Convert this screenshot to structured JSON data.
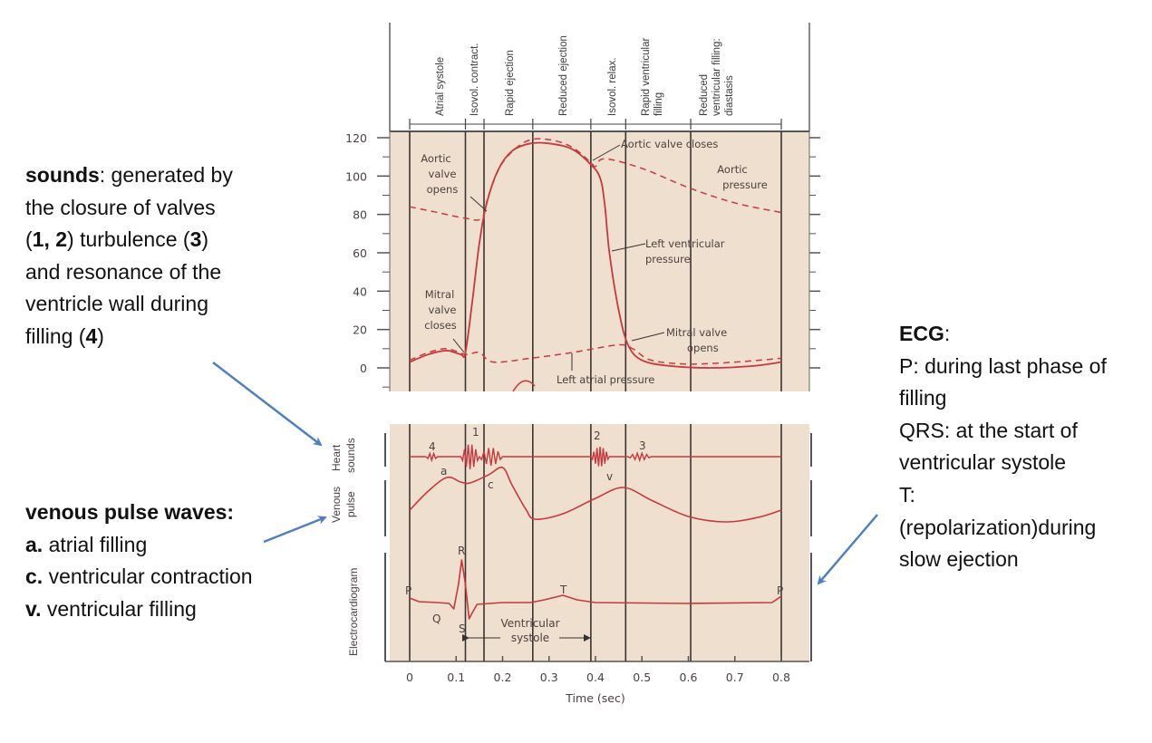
{
  "phases": [
    "Atrial systole",
    "Isovol. contract.",
    "Rapid ejection",
    "Reduced ejection",
    "Isovol. relax.",
    "Rapid ventricular",
    "filling",
    "Reduced",
    "ventricular filling:",
    "diastasis"
  ],
  "pressure_ticks": [
    "120",
    "100",
    "80",
    "60",
    "40",
    "20",
    "0"
  ],
  "time_ticks": [
    "0",
    "0.1",
    "0.2",
    "0.3",
    "0.4",
    "0.5",
    "0.6",
    "0.7",
    "0.8"
  ],
  "time_axis_label": "Time (sec)",
  "annotations": {
    "aortic_valve_opens": [
      "Aortic",
      "valve",
      "opens"
    ],
    "aortic_valve_closes": "Aortic valve closes",
    "aortic_pressure": [
      "Aortic",
      "pressure"
    ],
    "lv_pressure": [
      "Left ventricular",
      "pressure"
    ],
    "mitral_valve_closes": [
      "Mitral",
      "valve",
      "closes"
    ],
    "mitral_valve_opens": [
      "Mitral valve",
      "opens"
    ],
    "left_atrial_pressure": "Left atrial pressure",
    "heart_sound_numbers": [
      "4",
      "1",
      "2",
      "3"
    ],
    "venous_waves": [
      "a",
      "c",
      "v"
    ],
    "ecg_waves": {
      "p1": "P",
      "q": "Q",
      "r": "R",
      "s": "S",
      "t": "T",
      "p2": "P"
    },
    "ventricular_systole": [
      "Ventricular",
      "systole"
    ]
  },
  "row_labels": {
    "heart_sounds": [
      "Heart",
      "sounds"
    ],
    "venous_pulse": [
      "Venous",
      "pulse"
    ],
    "ecg": "Electrocardiogram"
  },
  "notes": {
    "sounds": {
      "l1_bold": "sounds",
      "l1": ": generated by",
      "l2": "the closure of valves",
      "l3_a": "(",
      "l3_b1": "1, 2",
      "l3_c": ") turbulence (",
      "l3_b2": "3",
      "l3_d": ")",
      "l4": "and resonance of the",
      "l5": "ventricle wall during",
      "l6_a": "filling (",
      "l6_b": "4",
      "l6_c": ")"
    },
    "venous": {
      "title": "venous pulse waves:",
      "a_key": "a.",
      "a_text": " atrial filling",
      "c_key": "c.",
      "c_text": " ventricular contraction",
      "v_key": "v.",
      "v_text": " ventricular filling"
    },
    "ecg": {
      "title": "ECG",
      "colon": ":",
      "lines": [
        "P: during last phase of",
        "filling",
        "QRS: at the start of",
        "ventricular systole",
        "T:",
        "(repolarization)during",
        "slow ejection"
      ]
    }
  },
  "colors": {
    "panel": "#efdfcf",
    "curve": "#c8383c",
    "grid": "#3b3431",
    "arrow": "#4f7fbf"
  }
}
